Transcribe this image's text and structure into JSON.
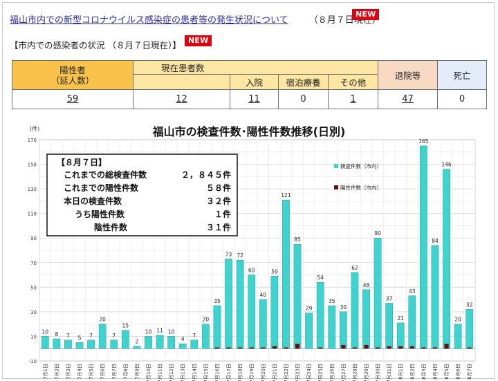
{
  "headline": {
    "link_text": "福山市内での新型コロナウイルス感染症の患者等の発生状況について",
    "date_text": "（８月７日現在）",
    "new_badge": "NEW"
  },
  "subhead": {
    "text": "【市内での感染者の状況 （８月７日現在）】",
    "new_badge": "NEW"
  },
  "stats_table": {
    "positives_header": [
      "陽性者",
      "（延人数）"
    ],
    "current_patients_header": "現在患者数",
    "hospitalized_header": "入院",
    "lodging_header": "宿泊療養",
    "other_header": "その他",
    "discharged_header": "退院等",
    "deaths_header": "死亡",
    "positives": "59",
    "current_patients": "12",
    "hospitalized": "11",
    "lodging": "0",
    "other": "1",
    "discharged": "47",
    "deaths": "0"
  },
  "colors": {
    "tests_bar": "#3fd3cf",
    "positive_bar": "#6b0e0e",
    "header_yellow": "#f9c24a",
    "header_light_yellow": "#fde5a2",
    "header_peach": "#f8d9c3",
    "header_blue": "#e3ecf8",
    "new_badge": "#e0000f"
  },
  "chart_data": {
    "type": "bar",
    "title": "福山市の検査件数･陽性件数推移(日別)",
    "ylabel": "(件)",
    "ylim": [
      -10,
      170
    ],
    "yticks": [
      -10,
      10,
      30,
      50,
      70,
      90,
      110,
      130,
      150,
      170
    ],
    "grid": true,
    "legend_position": "top-right",
    "categories": [
      "7月1日",
      "7月2日",
      "7月3日",
      "7月4日",
      "7月5日",
      "7月6日",
      "7月7日",
      "7月8日",
      "7月9日",
      "7月10日",
      "7月11日",
      "7月12日",
      "7月13日",
      "7月14日",
      "7月15日",
      "7月16日",
      "7月17日",
      "7月18日",
      "7月19日",
      "7月20日",
      "7月21日",
      "7月22日",
      "7月23日",
      "7月24日",
      "7月25日",
      "7月26日",
      "7月27日",
      "7月28日",
      "7月29日",
      "7月30日",
      "7月31日",
      "8月1日",
      "8月2日",
      "8月3日",
      "8月4日",
      "8月5日",
      "8月6日",
      "8月7日"
    ],
    "series": [
      {
        "name": "検査件数（市内）",
        "values": [
          10,
          8,
          7,
          5,
          7,
          20,
          7,
          15,
          2,
          10,
          11,
          10,
          4,
          7,
          20,
          35,
          73,
          72,
          60,
          40,
          59,
          121,
          85,
          29,
          54,
          35,
          30,
          62,
          48,
          90,
          37,
          21,
          43,
          165,
          84,
          146,
          20,
          32
        ],
        "data_labels": [
          "10",
          "8",
          "7",
          "5",
          "7",
          "20",
          "7",
          "15",
          "2",
          "10",
          "11",
          "10",
          "4",
          "7",
          "20",
          "35",
          "73",
          "72",
          "60",
          "40",
          "59",
          "121",
          "85",
          "29",
          "54",
          "35",
          "30",
          "62",
          "48",
          "90",
          "37",
          "21",
          "43",
          "165",
          "84",
          "146",
          "20",
          "32"
        ]
      },
      {
        "name": "陽性件数（市内）",
        "values": [
          0,
          0,
          0,
          0,
          0,
          0,
          0,
          0,
          0,
          0,
          0,
          0,
          0,
          0,
          0,
          1,
          1,
          1,
          1,
          1,
          2,
          1,
          4,
          0,
          1,
          0,
          3,
          1,
          3,
          1,
          2,
          2,
          2,
          1,
          1,
          4,
          0,
          1
        ]
      }
    ],
    "summary_box": {
      "heading": "【８月７日】",
      "rows": [
        {
          "label": "これまでの総検査件数",
          "value": "２，８４５件"
        },
        {
          "label": "これまでの陽性件数",
          "value": "５８件"
        },
        {
          "label": "本日の検査件数",
          "value": "３２件"
        },
        {
          "label": "うち陽性件数",
          "value": "１件"
        },
        {
          "label": "陰性件数",
          "value": "３１件"
        }
      ]
    }
  }
}
